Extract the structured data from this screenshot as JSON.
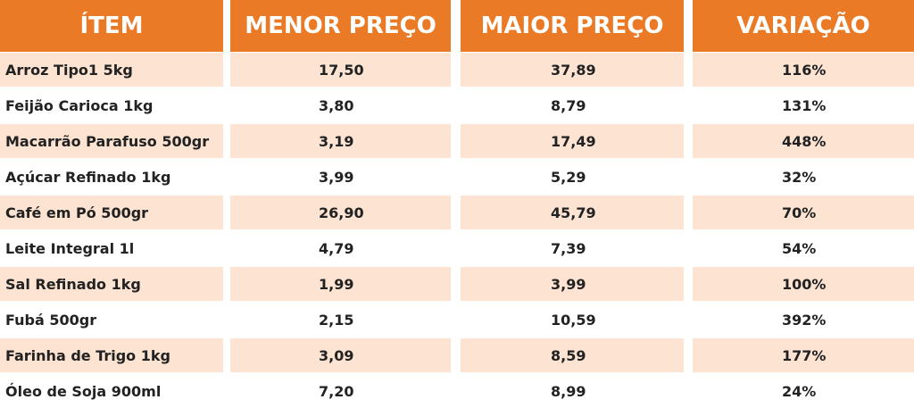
{
  "table": {
    "header": [
      "ÍTEM",
      "MENOR PREÇO",
      "MAIOR PREÇO",
      "VARIAÇÃO"
    ],
    "rows": [
      [
        "Arroz Tipo1 5kg",
        "17,50",
        "37,89",
        "116%"
      ],
      [
        "Feijão Carioca 1kg",
        "3,80",
        "8,79",
        "131%"
      ],
      [
        "Macarrão Parafuso 500gr",
        "3,19",
        "17,49",
        "448%"
      ],
      [
        "Açúcar Refinado 1kg",
        "3,99",
        "5,29",
        "32%"
      ],
      [
        "Café em Pó 500gr",
        "26,90",
        "45,79",
        "70%"
      ],
      [
        "Leite Integral 1l",
        "4,79",
        "7,39",
        "54%"
      ],
      [
        "Sal Refinado 1kg",
        "1,99",
        "3,99",
        "100%"
      ],
      [
        "Fubá 500gr",
        "2,15",
        "10,59",
        "392%"
      ],
      [
        "Farinha de Trigo 1kg",
        "3,09",
        "8,59",
        "177%"
      ],
      [
        "Óleo de Soja 900ml",
        "7,20",
        "8,99",
        "24%"
      ]
    ]
  }
}
